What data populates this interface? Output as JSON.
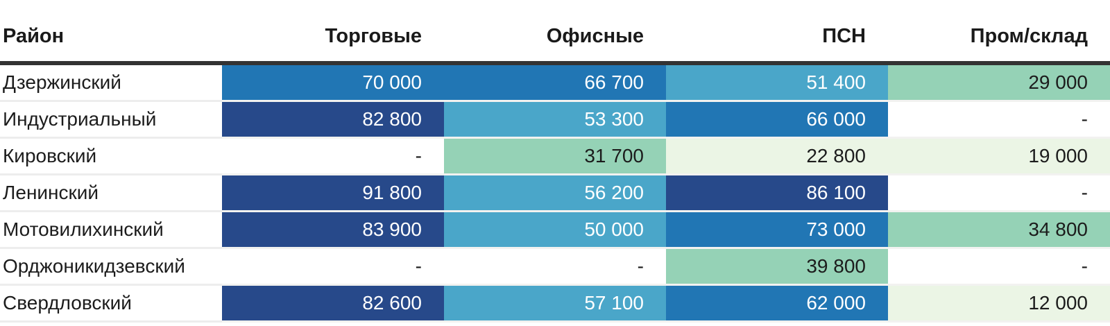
{
  "table": {
    "columns": [
      {
        "label": "Район",
        "align": "left"
      },
      {
        "label": "Торговые",
        "align": "right"
      },
      {
        "label": "Офисные",
        "align": "right"
      },
      {
        "label": "ПСН",
        "align": "right"
      },
      {
        "label": "Пром/склад",
        "align": "right"
      }
    ],
    "palette": {
      "navy": {
        "bg": "#27498a",
        "fg": "#ffffff"
      },
      "blue": {
        "bg": "#2176b4",
        "fg": "#ffffff"
      },
      "teal": {
        "bg": "#4aa6c9",
        "fg": "#ffffff"
      },
      "green": {
        "bg": "#95d2b6",
        "fg": "#1c1c1c"
      },
      "pale": {
        "bg": "#ebf5e5",
        "fg": "#1c1c1c"
      },
      "none": {
        "bg": "#ffffff",
        "fg": "#1c1c1c"
      }
    },
    "header_rule_color": "#333333",
    "missing_display": "-",
    "rows": [
      {
        "district": "Дзержинский",
        "cells": [
          {
            "value": "70 000",
            "level": "blue"
          },
          {
            "value": "66 700",
            "level": "blue"
          },
          {
            "value": "51 400",
            "level": "teal"
          },
          {
            "value": "29 000",
            "level": "green"
          }
        ]
      },
      {
        "district": "Индустриальный",
        "cells": [
          {
            "value": "82 800",
            "level": "navy"
          },
          {
            "value": "53 300",
            "level": "teal"
          },
          {
            "value": "66 000",
            "level": "blue"
          },
          {
            "value": "-",
            "level": "none"
          }
        ]
      },
      {
        "district": "Кировский",
        "cells": [
          {
            "value": "-",
            "level": "none"
          },
          {
            "value": "31 700",
            "level": "green"
          },
          {
            "value": "22 800",
            "level": "pale"
          },
          {
            "value": "19 000",
            "level": "pale"
          }
        ]
      },
      {
        "district": "Ленинский",
        "cells": [
          {
            "value": "91 800",
            "level": "navy"
          },
          {
            "value": "56 200",
            "level": "teal"
          },
          {
            "value": "86 100",
            "level": "navy"
          },
          {
            "value": "-",
            "level": "none"
          }
        ]
      },
      {
        "district": "Мотовилихинский",
        "cells": [
          {
            "value": "83 900",
            "level": "navy"
          },
          {
            "value": "50 000",
            "level": "teal"
          },
          {
            "value": "73 000",
            "level": "blue"
          },
          {
            "value": "34 800",
            "level": "green"
          }
        ]
      },
      {
        "district": "Орджоникидзевский",
        "cells": [
          {
            "value": "-",
            "level": "none"
          },
          {
            "value": "-",
            "level": "none"
          },
          {
            "value": "39 800",
            "level": "green"
          },
          {
            "value": "-",
            "level": "none"
          }
        ]
      },
      {
        "district": "Свердловский",
        "cells": [
          {
            "value": "82 600",
            "level": "navy"
          },
          {
            "value": "57 100",
            "level": "teal"
          },
          {
            "value": "62 000",
            "level": "blue"
          },
          {
            "value": "12 000",
            "level": "pale"
          }
        ]
      }
    ]
  },
  "chart_data": {
    "type": "heatmap",
    "title": "",
    "row_label": "Район",
    "columns": [
      "Торговые",
      "Офисные",
      "ПСН",
      "Пром/склад"
    ],
    "rows": [
      "Дзержинский",
      "Индустриальный",
      "Кировский",
      "Ленинский",
      "Мотовилихинский",
      "Орджоникидзевский",
      "Свердловский"
    ],
    "values": [
      [
        70000,
        66700,
        51400,
        29000
      ],
      [
        82800,
        53300,
        66000,
        null
      ],
      [
        null,
        31700,
        22800,
        19000
      ],
      [
        91800,
        56200,
        86100,
        null
      ],
      [
        83900,
        50000,
        73000,
        34800
      ],
      [
        null,
        null,
        39800,
        null
      ],
      [
        82600,
        57100,
        62000,
        12000
      ]
    ],
    "missing_display": "-",
    "color_scale": {
      "buckets": [
        {
          "range": [
            12000,
            25000
          ],
          "color": "#ebf5e5"
        },
        {
          "range": [
            25000,
            45000
          ],
          "color": "#95d2b6"
        },
        {
          "range": [
            45000,
            60000
          ],
          "color": "#4aa6c9"
        },
        {
          "range": [
            60000,
            75000
          ],
          "color": "#2176b4"
        },
        {
          "range": [
            75000,
            92000
          ],
          "color": "#27498a"
        }
      ]
    },
    "legend": "none",
    "grid": "off"
  }
}
